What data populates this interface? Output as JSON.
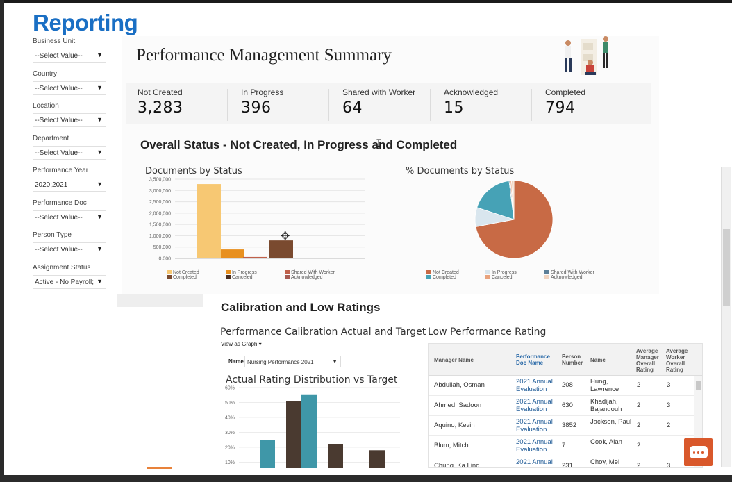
{
  "brand": "Reporting",
  "filters": [
    {
      "label": "Business Unit",
      "value": "--Select Value--"
    },
    {
      "label": "Country",
      "value": "--Select Value--"
    },
    {
      "label": "Location",
      "value": "--Select Value--"
    },
    {
      "label": "Department",
      "value": "--Select Value--"
    },
    {
      "label": "Performance Year",
      "value": "2020;2021"
    },
    {
      "label": "Performance Doc",
      "value": "--Select Value--"
    },
    {
      "label": "Person Type",
      "value": "--Select Value--"
    },
    {
      "label": "Assignment Status",
      "value": "Active - No Payroll;"
    }
  ],
  "summary": {
    "title": "Performance Management Summary",
    "kpis": [
      {
        "label": "Not Created",
        "value": "3,283"
      },
      {
        "label": "In Progress",
        "value": "396"
      },
      {
        "label": "Shared with Worker",
        "value": "64"
      },
      {
        "label": "Acknowledged",
        "value": "15"
      },
      {
        "label": "Completed",
        "value": "794"
      }
    ]
  },
  "overall": {
    "heading": "Overall Status - Not Created, In Progress and Completed"
  },
  "chart_data": [
    {
      "type": "bar",
      "title": "Documents by Status",
      "categories": [
        "Not Created",
        "In Progress",
        "Shared With Worker",
        "Completed",
        "Canceled",
        "Acknowledged"
      ],
      "values": [
        3283,
        396,
        64,
        794,
        0,
        15
      ],
      "colors": [
        "#f7c873",
        "#e8901f",
        "#c0604a",
        "#7a4a2f",
        "#4a2f22",
        "#a65b53"
      ],
      "ylim": [
        0,
        3500000
      ],
      "yticks": [
        "3,500,000",
        "3,000,000",
        "2,500,000",
        "2,000,000",
        "1,500,000",
        "1,000,000",
        "500,000",
        "0.000"
      ],
      "legend": [
        "Not Created",
        "In Progress",
        "Shared With Worker",
        "Completed",
        "Canceled",
        "Acknowledged"
      ]
    },
    {
      "type": "pie",
      "title": "% Documents by Status",
      "labels": [
        "Not Created",
        "In Progress",
        "Shared With Worker",
        "Completed",
        "Canceled",
        "Acknowledged"
      ],
      "values": [
        72,
        8,
        0.5,
        18,
        0.5,
        1
      ],
      "colors": [
        "#c86a45",
        "#d9e6ee",
        "#5c7f98",
        "#46a2b6",
        "#e8a37e",
        "#f0d3bf"
      ],
      "legend": [
        "Not Created",
        "In Progress",
        "Shared With Worker",
        "Completed",
        "Canceled",
        "Acknowledged"
      ]
    },
    {
      "type": "bar",
      "title": "Actual Rating Distribution vs Target",
      "yticks": [
        "60%",
        "50%",
        "40%",
        "30%",
        "20%",
        "10%"
      ],
      "ylim": [
        0,
        60
      ],
      "series": [
        {
          "color": "#4a3a30",
          "values": [
            2,
            51,
            22,
            18
          ]
        },
        {
          "color": "#3f97a8",
          "values": [
            25,
            55,
            3
          ]
        }
      ]
    }
  ],
  "calibration": {
    "heading": "Calibration and Low Ratings",
    "left_title": "Performance Calibration Actual and Target",
    "view_as_label": "View as",
    "view_as_value": "Graph",
    "name_label": "Name",
    "name_value": "Nursing Performance 2021"
  },
  "low_rating": {
    "title": "Low Performance Rating",
    "columns": [
      "Manager Name",
      "Performance Doc Name",
      "Person Number",
      "Name",
      "Average Manager Overall Rating",
      "Average Worker Overall Rating"
    ],
    "rows": [
      {
        "manager": "Abdullah, Osman",
        "doc": "2021 Annual Evaluation",
        "number": "208",
        "name": "Hung, Lawrence",
        "mgr": "2",
        "wkr": "3"
      },
      {
        "manager": "Ahmed, Sadoon",
        "doc": "2021 Annual Evaluation",
        "number": "630",
        "name": "Khadijah, Bajandouh",
        "mgr": "2",
        "wkr": "3"
      },
      {
        "manager": "Aquino, Kevin",
        "doc": "2021 Annual Evaluation",
        "number": "3852",
        "name": "Jackson, Paul",
        "mgr": "2",
        "wkr": "2"
      },
      {
        "manager": "Blum, Mitch",
        "doc": "2021 Annual Evaluation",
        "number": "7",
        "name": "Cook, Alan",
        "mgr": "2",
        "wkr": ""
      },
      {
        "manager": "Chung, Ka Ling",
        "doc": "2021 Annual",
        "number": "231",
        "name": "Choy, Mei",
        "mgr": "2",
        "wkr": "3"
      }
    ]
  }
}
